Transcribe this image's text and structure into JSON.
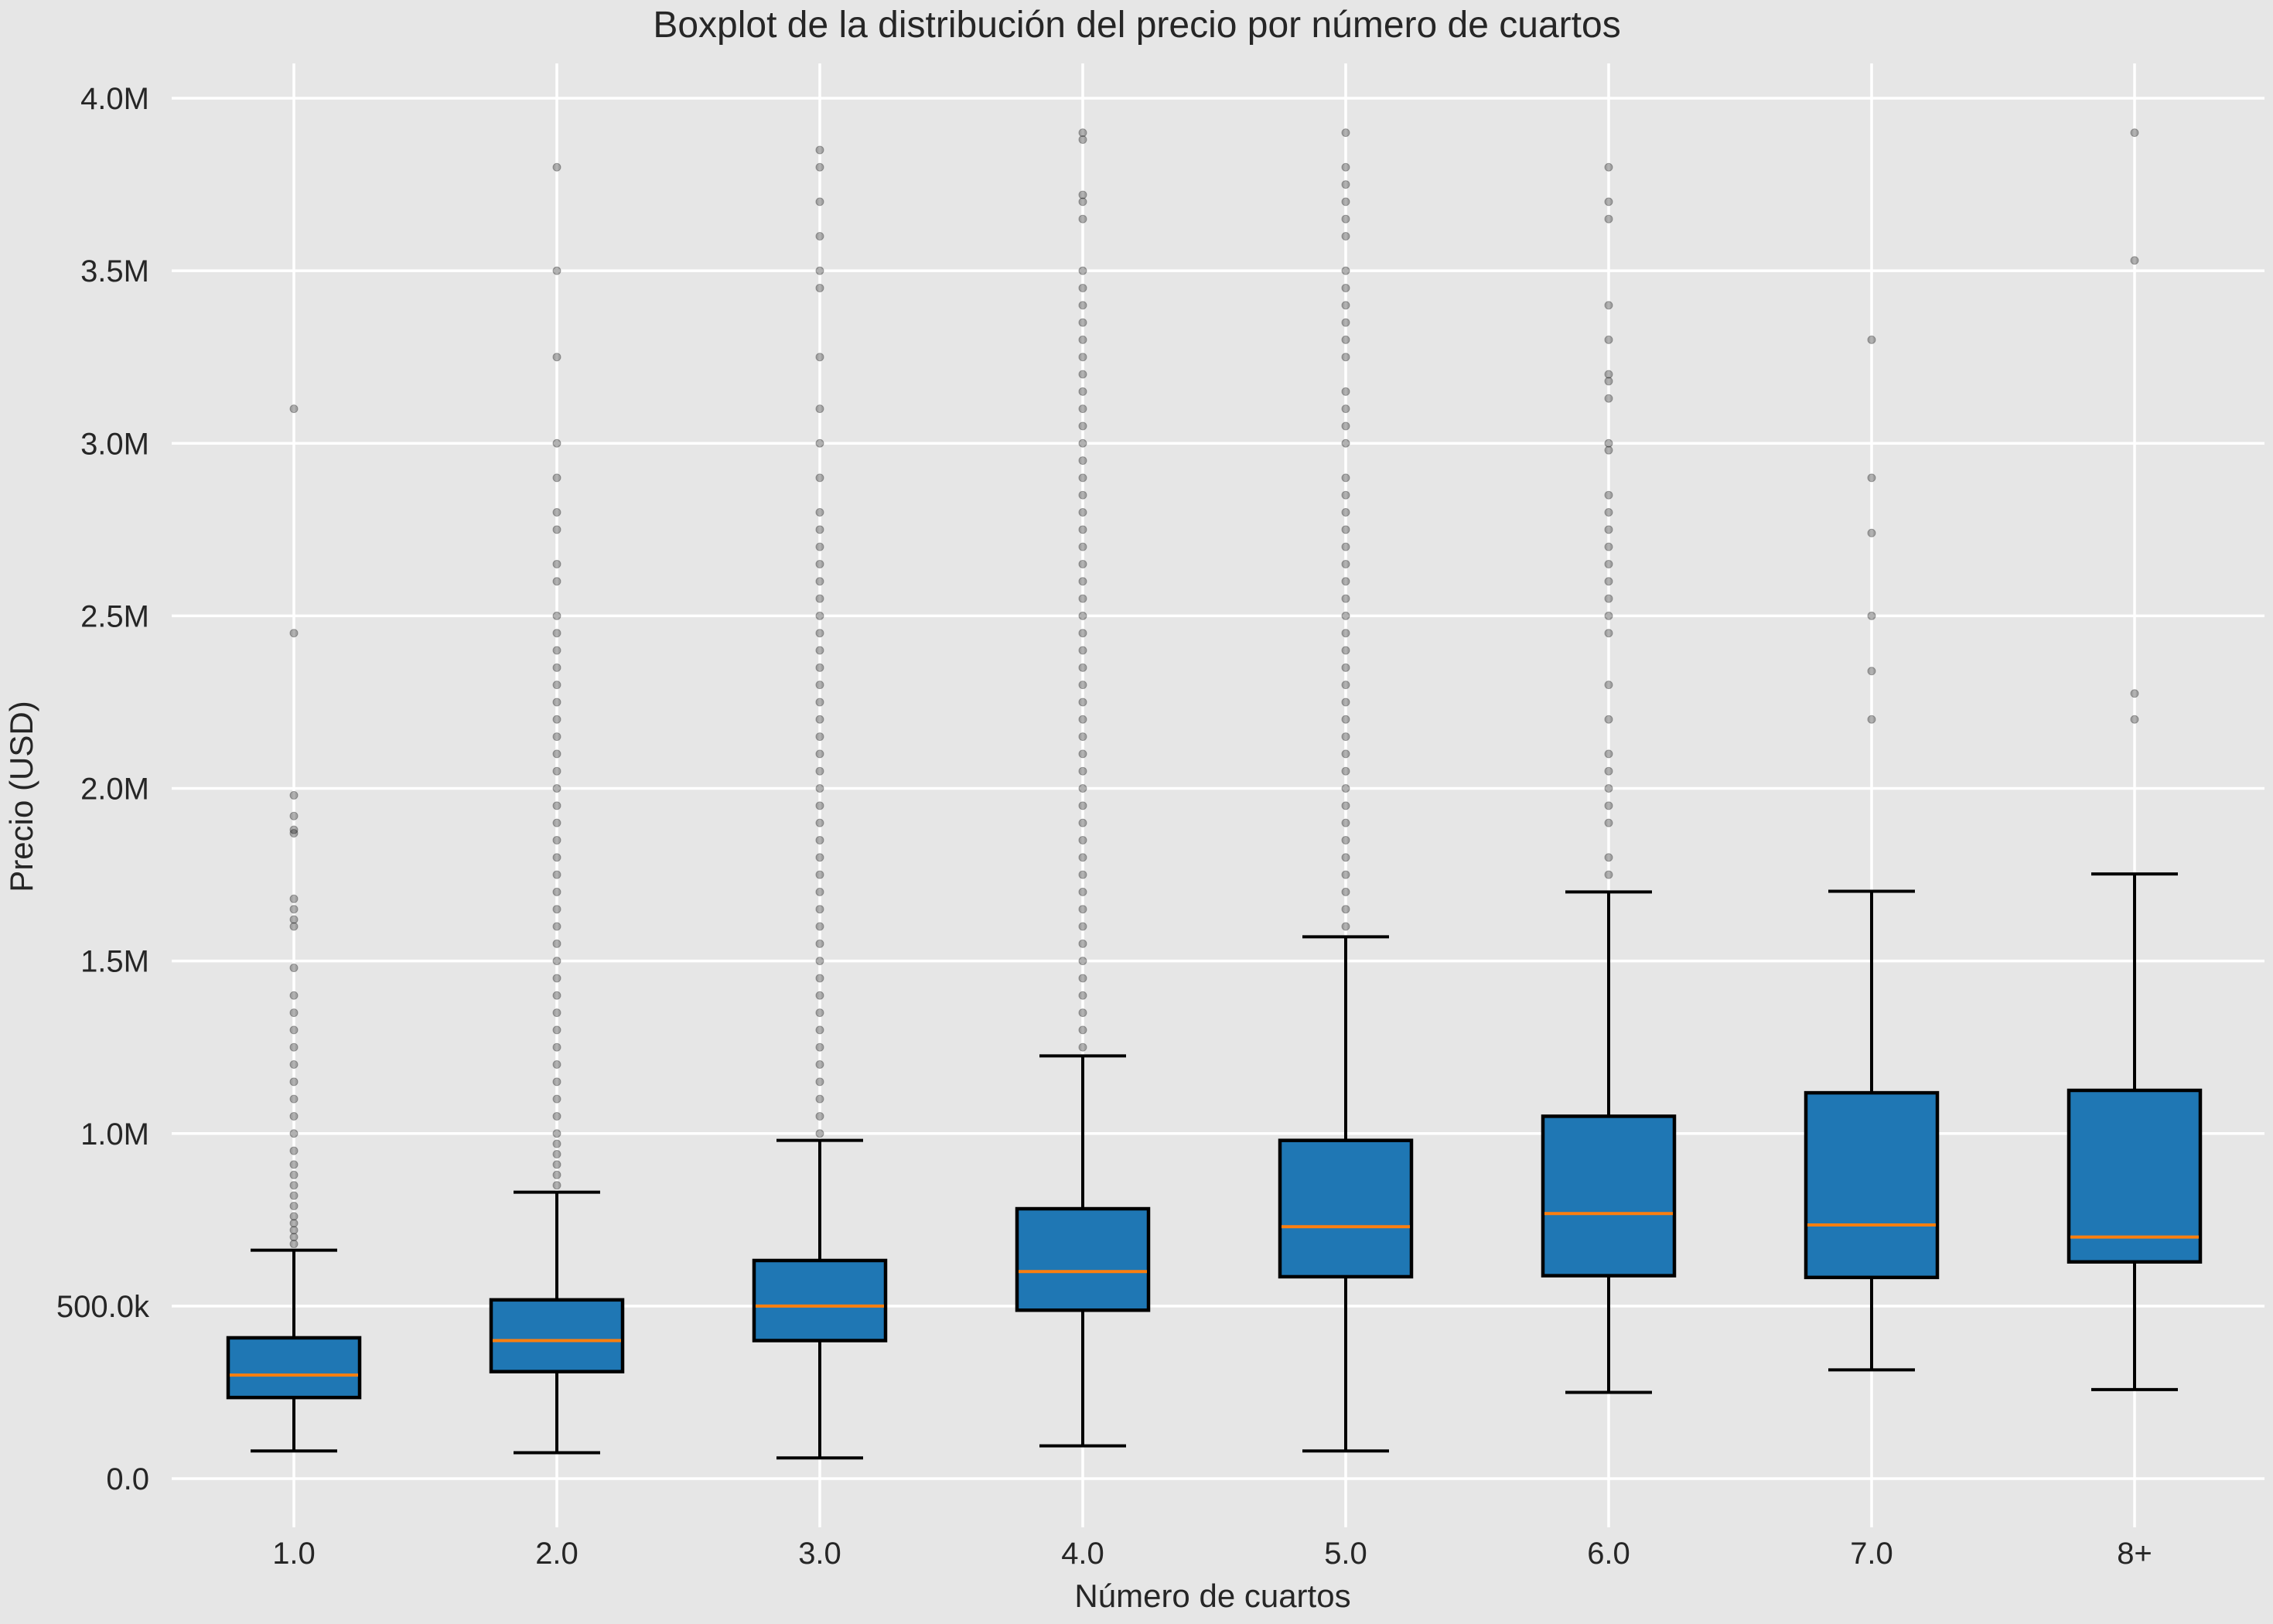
{
  "chart_data": {
    "type": "boxplot",
    "title": "Boxplot de la distribución del precio por número de cuartos",
    "xlabel": "Número de cuartos",
    "ylabel": "Precio (USD)",
    "ylim": [
      -80000,
      4100000
    ],
    "y_ticks": [
      {
        "value": 0,
        "label": "0.0"
      },
      {
        "value": 500000,
        "label": "500.0k"
      },
      {
        "value": 1000000,
        "label": "1.0M"
      },
      {
        "value": 1500000,
        "label": "1.5M"
      },
      {
        "value": 2000000,
        "label": "2.0M"
      },
      {
        "value": 2500000,
        "label": "2.5M"
      },
      {
        "value": 3000000,
        "label": "3.0M"
      },
      {
        "value": 3500000,
        "label": "3.5M"
      },
      {
        "value": 4000000,
        "label": "4.0M"
      }
    ],
    "grid": true,
    "colors": {
      "box_fill": "#1f77b4",
      "box_edge": "#000000",
      "median": "#ff7f0e",
      "outlier": "#000000",
      "background": "#e6e6e6",
      "grid": "#ffffff"
    },
    "categories": [
      "1.0",
      "2.0",
      "3.0",
      "4.0",
      "5.0",
      "6.0",
      "7.0",
      "8+"
    ],
    "boxes": [
      {
        "category": "1.0",
        "whisker_low": 80000,
        "q1": 235000,
        "median": 300000,
        "q3": 408000,
        "whisker_high": 662000,
        "outliers": [
          680000,
          700000,
          720000,
          740000,
          760000,
          790000,
          820000,
          850000,
          880000,
          910000,
          950000,
          1000000,
          1050000,
          1100000,
          1150000,
          1200000,
          1250000,
          1300000,
          1350000,
          1400000,
          1480000,
          1600000,
          1620000,
          1650000,
          1680000,
          1870000,
          1880000,
          1920000,
          1980000,
          2450000,
          3100000
        ]
      },
      {
        "category": "2.0",
        "whisker_low": 75000,
        "q1": 310000,
        "median": 400000,
        "q3": 518000,
        "whisker_high": 830000,
        "outliers": [
          850000,
          880000,
          910000,
          940000,
          970000,
          1000000,
          1050000,
          1100000,
          1150000,
          1200000,
          1250000,
          1300000,
          1350000,
          1400000,
          1450000,
          1500000,
          1550000,
          1600000,
          1650000,
          1700000,
          1750000,
          1800000,
          1850000,
          1900000,
          1950000,
          2000000,
          2050000,
          2100000,
          2150000,
          2200000,
          2250000,
          2300000,
          2350000,
          2400000,
          2450000,
          2500000,
          2600000,
          2650000,
          2750000,
          2800000,
          2900000,
          3000000,
          3250000,
          3500000,
          3800000
        ]
      },
      {
        "category": "3.0",
        "whisker_low": 60000,
        "q1": 400000,
        "median": 500000,
        "q3": 632000,
        "whisker_high": 980000,
        "outliers": [
          1000000,
          1050000,
          1100000,
          1150000,
          1200000,
          1250000,
          1300000,
          1350000,
          1400000,
          1450000,
          1500000,
          1550000,
          1600000,
          1650000,
          1700000,
          1750000,
          1800000,
          1850000,
          1900000,
          1950000,
          2000000,
          2050000,
          2100000,
          2150000,
          2200000,
          2250000,
          2300000,
          2350000,
          2400000,
          2450000,
          2500000,
          2550000,
          2600000,
          2650000,
          2700000,
          2750000,
          2800000,
          2900000,
          3000000,
          3100000,
          3250000,
          3450000,
          3500000,
          3600000,
          3700000,
          3800000,
          3850000
        ]
      },
      {
        "category": "4.0",
        "whisker_low": 95000,
        "q1": 488000,
        "median": 600000,
        "q3": 782000,
        "whisker_high": 1225000,
        "outliers": [
          1250000,
          1300000,
          1350000,
          1400000,
          1450000,
          1500000,
          1550000,
          1600000,
          1650000,
          1700000,
          1750000,
          1800000,
          1850000,
          1900000,
          1950000,
          2000000,
          2050000,
          2100000,
          2150000,
          2200000,
          2250000,
          2300000,
          2350000,
          2400000,
          2450000,
          2500000,
          2550000,
          2600000,
          2650000,
          2700000,
          2750000,
          2800000,
          2850000,
          2900000,
          2950000,
          3000000,
          3050000,
          3100000,
          3150000,
          3200000,
          3250000,
          3300000,
          3350000,
          3400000,
          3450000,
          3500000,
          3650000,
          3700000,
          3720000,
          3880000,
          3900000
        ]
      },
      {
        "category": "5.0",
        "whisker_low": 80000,
        "q1": 585000,
        "median": 730000,
        "q3": 980000,
        "whisker_high": 1570000,
        "outliers": [
          1600000,
          1650000,
          1700000,
          1750000,
          1800000,
          1850000,
          1900000,
          1950000,
          2000000,
          2050000,
          2100000,
          2150000,
          2200000,
          2250000,
          2300000,
          2350000,
          2400000,
          2450000,
          2500000,
          2550000,
          2600000,
          2650000,
          2700000,
          2750000,
          2800000,
          2850000,
          2900000,
          3000000,
          3050000,
          3100000,
          3150000,
          3250000,
          3300000,
          3350000,
          3400000,
          3450000,
          3500000,
          3600000,
          3650000,
          3700000,
          3750000,
          3800000,
          3900000
        ]
      },
      {
        "category": "6.0",
        "whisker_low": 250000,
        "q1": 588000,
        "median": 768000,
        "q3": 1050000,
        "whisker_high": 1700000,
        "outliers": [
          1750000,
          1800000,
          1900000,
          1950000,
          2000000,
          2050000,
          2100000,
          2200000,
          2300000,
          2450000,
          2500000,
          2550000,
          2600000,
          2650000,
          2700000,
          2750000,
          2800000,
          2850000,
          2980000,
          3000000,
          3130000,
          3180000,
          3200000,
          3300000,
          3400000,
          3650000,
          3700000,
          3800000
        ]
      },
      {
        "category": "7.0",
        "whisker_low": 315000,
        "q1": 583000,
        "median": 735000,
        "q3": 1118000,
        "whisker_high": 1702000,
        "outliers": [
          2200000,
          2340000,
          2500000,
          2740000,
          2900000,
          3300000
        ]
      },
      {
        "category": "8+",
        "whisker_low": 258000,
        "q1": 628000,
        "median": 700000,
        "q3": 1125000,
        "whisker_high": 1752000,
        "outliers": [
          2200000,
          2275000,
          3530000,
          3900000
        ]
      }
    ]
  }
}
